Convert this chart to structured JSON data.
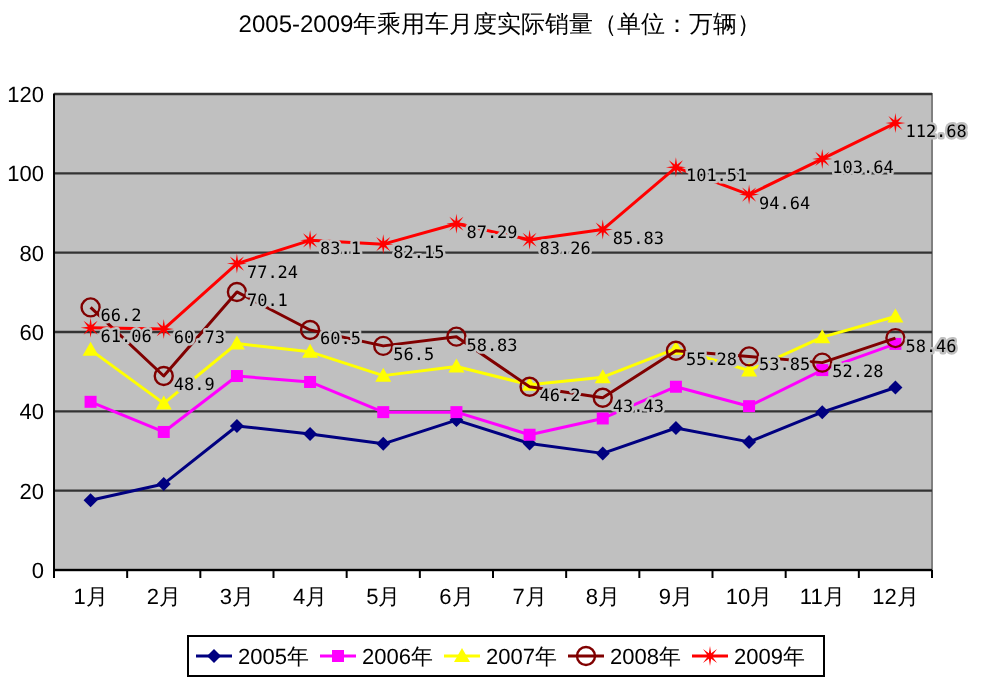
{
  "chart_data": {
    "type": "line",
    "title": "2005-2009年乘用车月度实际销量（单位：万辆）",
    "categories": [
      "1月",
      "2月",
      "3月",
      "4月",
      "5月",
      "6月",
      "7月",
      "8月",
      "9月",
      "10月",
      "11月",
      "12月"
    ],
    "ylim": [
      0,
      120
    ],
    "yticks": [
      0,
      20,
      40,
      60,
      80,
      100,
      120
    ],
    "grid": "y",
    "legend": "bottom",
    "series": [
      {
        "name": "2005年",
        "color": "#000080",
        "marker": "diamond",
        "values": [
          17.6,
          21.7,
          36.3,
          34.3,
          31.8,
          37.8,
          31.9,
          29.4,
          35.8,
          32.3,
          39.8,
          46
        ]
      },
      {
        "name": "2006年",
        "color": "#ff00ff",
        "marker": "square",
        "values": [
          42.4,
          34.8,
          48.9,
          47.4,
          39.8,
          39.8,
          34.1,
          38.2,
          46.2,
          41.3,
          50.4,
          57
        ]
      },
      {
        "name": "2007年",
        "color": "#ffff00",
        "marker": "triangle",
        "values": [
          55.5,
          42,
          57.1,
          55,
          49,
          51.3,
          46.7,
          48.6,
          55.8,
          50.3,
          58.7,
          63.9
        ]
      },
      {
        "name": "2008年",
        "color": "#800000",
        "marker": "circle",
        "values": [
          66.2,
          48.9,
          70.1,
          60.5,
          56.5,
          58.83,
          46.2,
          43.43,
          55.28,
          53.85,
          52.28,
          58.46
        ],
        "value_labels": [
          "66.2",
          "48.9",
          "70.1",
          "60.5",
          "56.5",
          "58.83",
          "46.2",
          "43.43",
          "55.28",
          "53.85",
          "52.28",
          "58.46"
        ]
      },
      {
        "name": "2009年",
        "color": "#ff0000",
        "marker": "star",
        "values": [
          61.06,
          60.73,
          77.24,
          83.1,
          82.15,
          87.29,
          83.26,
          85.83,
          101.51,
          94.64,
          103.64,
          112.68
        ],
        "value_labels": [
          "61.06",
          "60.73",
          "77.24",
          "83.1",
          "82.15",
          "87.29",
          "83.26",
          "85.83",
          "101.51",
          "94.64",
          "103.64",
          "112.68"
        ]
      }
    ]
  }
}
